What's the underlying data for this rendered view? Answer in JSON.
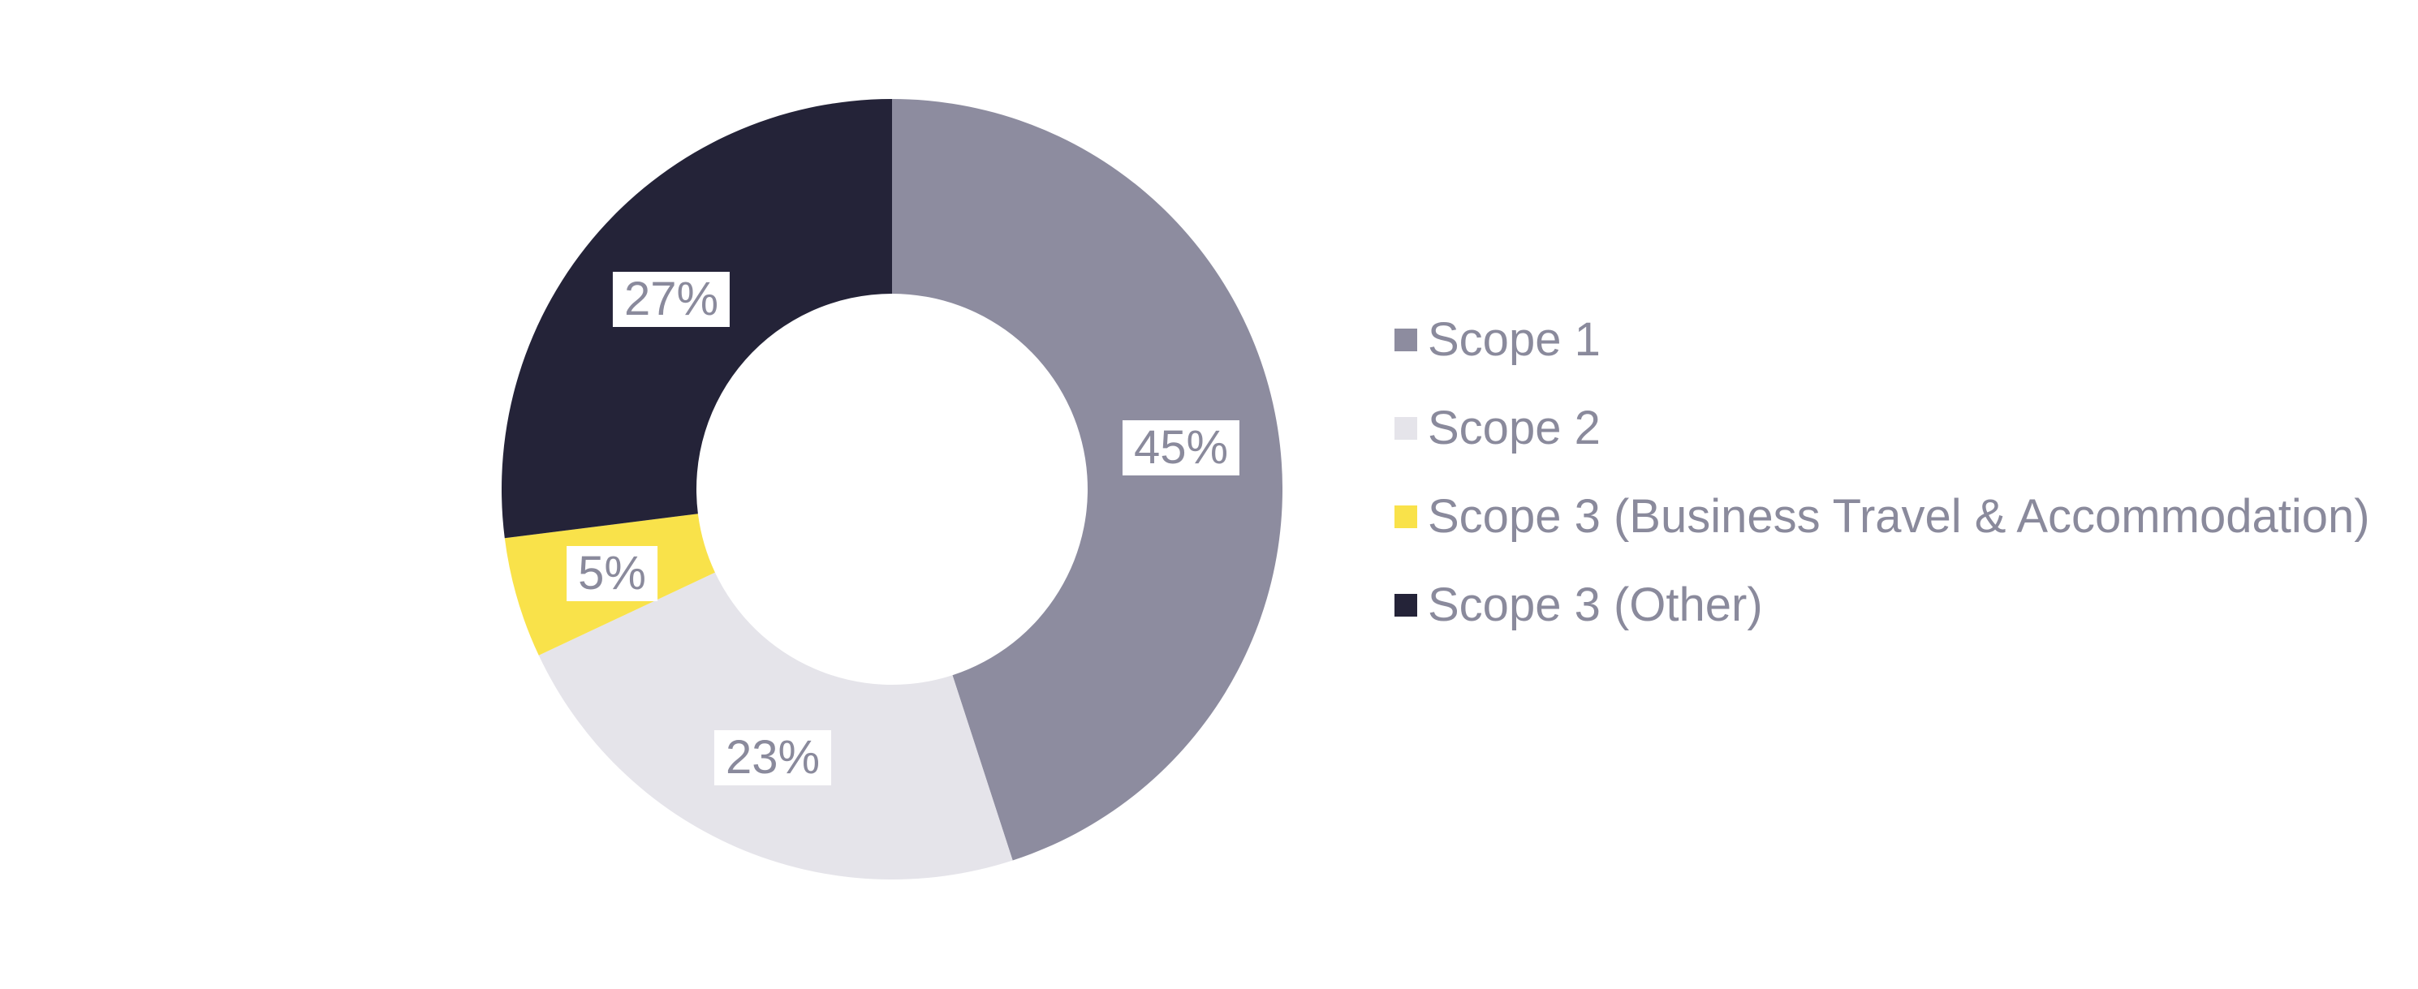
{
  "page": {
    "background_color": "#ffffff"
  },
  "chart_data": {
    "type": "pie",
    "subtype": "donut",
    "title": "",
    "direction": "clockwise",
    "start_angle_deg": 0,
    "inner_radius_ratio": 0.5,
    "legend_position": "right",
    "series": [
      {
        "label": "Scope 1",
        "value": 45,
        "color": "#8d8c9f"
      },
      {
        "label": "Scope 2",
        "value": 23,
        "color": "#e5e4ea"
      },
      {
        "label": "Scope 3 (Business Travel & Accommodation)",
        "value": 5,
        "color": "#f9e24a"
      },
      {
        "label": "Scope 3 (Other)",
        "value": 27,
        "color": "#242338"
      }
    ],
    "slice_labels": [
      "45%",
      "23%",
      "5%",
      "27%"
    ],
    "label_text_color": "#8a8a9c",
    "label_background": "#ffffff"
  }
}
